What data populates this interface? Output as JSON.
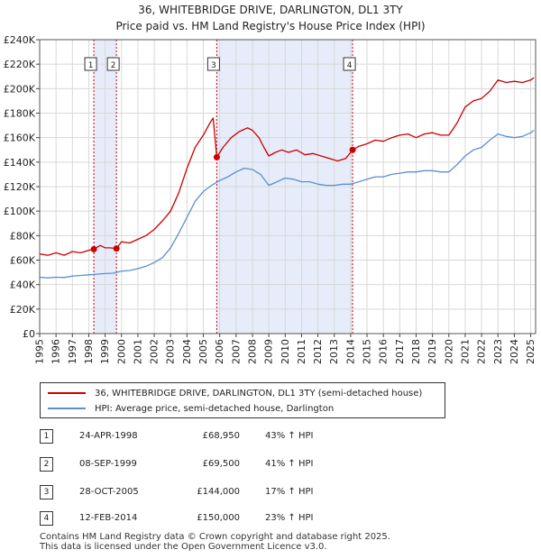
{
  "header": {
    "title": "36, WHITEBRIDGE DRIVE, DARLINGTON, DL1 3TY",
    "subtitle": "Price paid vs. HM Land Registry's House Price Index (HPI)"
  },
  "colors": {
    "price": "#cc0000",
    "hpi": "#5b8fcf",
    "shade": "#e6ecfa",
    "vline": "#cc0000"
  },
  "chart_data": {
    "type": "line",
    "title": "Price paid vs. HM Land Registry's House Price Index (HPI)",
    "xlim": [
      1995.0,
      2025.3
    ],
    "ylim": [
      0,
      240000
    ],
    "xticks": [
      1995,
      1996,
      1997,
      1998,
      1999,
      2000,
      2001,
      2002,
      2003,
      2004,
      2005,
      2006,
      2007,
      2008,
      2009,
      2010,
      2011,
      2012,
      2013,
      2014,
      2015,
      2016,
      2017,
      2018,
      2019,
      2020,
      2021,
      2022,
      2023,
      2024,
      2025
    ],
    "ytick_values": [
      0,
      20000,
      40000,
      60000,
      80000,
      100000,
      120000,
      140000,
      160000,
      180000,
      200000,
      220000,
      240000
    ],
    "ytick_labels": [
      "£0",
      "£20K",
      "£40K",
      "£60K",
      "£80K",
      "£100K",
      "£120K",
      "£140K",
      "£160K",
      "£180K",
      "£200K",
      "£220K",
      "£240K"
    ],
    "grid": true,
    "shaded_periods": [
      [
        1998.31,
        1999.69
      ],
      [
        2005.82,
        2014.12
      ]
    ],
    "series": [
      {
        "name": "36, WHITEBRIDGE DRIVE, DARLINGTON, DL1 3TY (semi-detached house)",
        "color": "#cc0000",
        "x": [
          1995.0,
          1995.5,
          1996.0,
          1996.5,
          1997.0,
          1997.5,
          1998.0,
          1998.31,
          1998.7,
          1999.0,
          1999.3,
          1999.69,
          2000.0,
          2000.5,
          2001.0,
          2001.5,
          2002.0,
          2002.5,
          2003.0,
          2003.5,
          2004.0,
          2004.5,
          2005.0,
          2005.4,
          2005.6,
          2005.82,
          2006.2,
          2006.7,
          2007.2,
          2007.7,
          2008.0,
          2008.4,
          2008.7,
          2009.0,
          2009.4,
          2009.8,
          2010.2,
          2010.7,
          2011.2,
          2011.7,
          2012.2,
          2012.7,
          2013.2,
          2013.7,
          2014.12,
          2014.5,
          2015.0,
          2015.5,
          2016.0,
          2016.5,
          2017.0,
          2017.5,
          2018.0,
          2018.5,
          2019.0,
          2019.5,
          2020.0,
          2020.5,
          2021.0,
          2021.5,
          2022.0,
          2022.5,
          2023.0,
          2023.5,
          2024.0,
          2024.5,
          2025.0,
          2025.2
        ],
        "values": [
          65000,
          64000,
          66000,
          64000,
          67000,
          66000,
          68000,
          68950,
          72000,
          70000,
          70000,
          69500,
          75000,
          74000,
          77000,
          80000,
          85000,
          92000,
          100000,
          115000,
          135000,
          152000,
          162000,
          172000,
          176000,
          144000,
          152000,
          160000,
          165000,
          168000,
          166000,
          160000,
          152000,
          145000,
          148000,
          150000,
          148000,
          150000,
          146000,
          147000,
          145000,
          143000,
          141000,
          143000,
          150000,
          153000,
          155000,
          158000,
          157000,
          160000,
          162000,
          163000,
          160000,
          163000,
          164000,
          162000,
          162000,
          172000,
          185000,
          190000,
          192000,
          198000,
          207000,
          205000,
          206000,
          205000,
          207000,
          209000
        ]
      },
      {
        "name": "HPI: Average price, semi-detached house, Darlington",
        "color": "#5b8fcf",
        "x": [
          1995.0,
          1995.5,
          1996.0,
          1996.5,
          1997.0,
          1997.5,
          1998.0,
          1998.5,
          1999.0,
          1999.5,
          2000.0,
          2000.5,
          2001.0,
          2001.5,
          2002.0,
          2002.5,
          2003.0,
          2003.5,
          2004.0,
          2004.5,
          2005.0,
          2005.5,
          2006.0,
          2006.5,
          2007.0,
          2007.5,
          2008.0,
          2008.5,
          2009.0,
          2009.5,
          2010.0,
          2010.5,
          2011.0,
          2011.5,
          2012.0,
          2012.5,
          2013.0,
          2013.5,
          2014.0,
          2014.5,
          2015.0,
          2015.5,
          2016.0,
          2016.5,
          2017.0,
          2017.5,
          2018.0,
          2018.5,
          2019.0,
          2019.5,
          2020.0,
          2020.5,
          2021.0,
          2021.5,
          2022.0,
          2022.5,
          2023.0,
          2023.5,
          2024.0,
          2024.5,
          2025.0,
          2025.2
        ],
        "values": [
          46000,
          45500,
          46000,
          45800,
          47000,
          47500,
          48000,
          48500,
          49000,
          49300,
          51000,
          51500,
          53000,
          55000,
          58000,
          62000,
          70000,
          82000,
          95000,
          108000,
          116000,
          121000,
          125000,
          128000,
          132000,
          135000,
          134000,
          130000,
          121000,
          124000,
          127000,
          126000,
          124000,
          124000,
          122000,
          121000,
          121000,
          122000,
          122000,
          124000,
          126000,
          128000,
          128000,
          130000,
          131000,
          132000,
          132000,
          133000,
          133000,
          132000,
          132000,
          138000,
          145000,
          150000,
          152000,
          158000,
          163000,
          161000,
          160000,
          161000,
          164000,
          166000
        ]
      }
    ],
    "sales": [
      {
        "label": "1",
        "x": 1998.31,
        "value": 68950
      },
      {
        "label": "2",
        "x": 1999.69,
        "value": 69500
      },
      {
        "label": "3",
        "x": 2005.82,
        "value": 144000
      },
      {
        "label": "4",
        "x": 2014.12,
        "value": 150000
      }
    ]
  },
  "legend": {
    "price_label": "36, WHITEBRIDGE DRIVE, DARLINGTON, DL1 3TY (semi-detached house)",
    "hpi_label": "HPI: Average price, semi-detached house, Darlington"
  },
  "transactions": [
    {
      "num": "1",
      "date": "24-APR-1998",
      "price": "£68,950",
      "hpi": "43% ↑ HPI"
    },
    {
      "num": "2",
      "date": "08-SEP-1999",
      "price": "£69,500",
      "hpi": "41% ↑ HPI"
    },
    {
      "num": "3",
      "date": "28-OCT-2005",
      "price": "£144,000",
      "hpi": "17% ↑ HPI"
    },
    {
      "num": "4",
      "date": "12-FEB-2014",
      "price": "£150,000",
      "hpi": "23% ↑ HPI"
    }
  ],
  "footer": {
    "line1": "Contains HM Land Registry data © Crown copyright and database right 2025.",
    "line2": "This data is licensed under the Open Government Licence v3.0."
  }
}
